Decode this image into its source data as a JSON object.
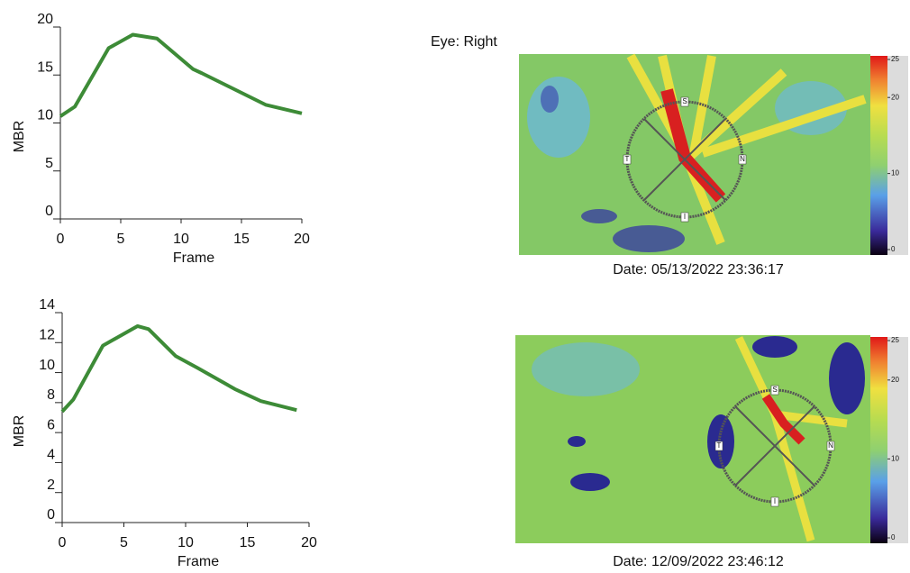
{
  "chart_data": [
    {
      "type": "line",
      "x_label": "Frame",
      "y_label": "MBR",
      "xlim": [
        0,
        20
      ],
      "xticks": [
        0,
        5,
        10,
        15,
        20
      ],
      "ylim": [
        0,
        20
      ],
      "yticks": [
        0,
        5,
        10,
        15,
        20
      ],
      "series": [
        {
          "color": "#3d8b37",
          "x": [
            0,
            1.2,
            4,
            6,
            8,
            11,
            11.7,
            17,
            20
          ],
          "values": [
            10.7,
            11.7,
            17.8,
            19.2,
            18.8,
            15.6,
            15.2,
            11.9,
            11.0
          ]
        }
      ]
    },
    {
      "type": "line",
      "x_label": "Frame",
      "y_label": "MBR",
      "xlim": [
        0,
        20
      ],
      "xticks": [
        0,
        5,
        10,
        15,
        20
      ],
      "ylim": [
        0,
        14
      ],
      "yticks": [
        0,
        2,
        4,
        6,
        8,
        10,
        12,
        14
      ],
      "series": [
        {
          "color": "#3d8b37",
          "x": [
            0,
            0.9,
            3.3,
            6.1,
            7,
            9.2,
            11,
            14,
            16.1,
            19
          ],
          "values": [
            7.4,
            8.2,
            11.8,
            13.1,
            12.9,
            11.1,
            10.3,
            8.9,
            8.1,
            7.5
          ]
        }
      ]
    }
  ],
  "eye": "Eye: Right",
  "images": [
    {
      "date": "Date: 05/13/2022 23:36:17",
      "colorbar_ticks": [
        25,
        20,
        10,
        0
      ],
      "sectors": [
        "S",
        "T",
        "N",
        "I"
      ]
    },
    {
      "date": "Date: 12/09/2022 23:46:12",
      "colorbar_ticks": [
        25,
        20,
        10,
        0
      ],
      "sectors": [
        "S",
        "T",
        "N",
        "I"
      ]
    }
  ]
}
